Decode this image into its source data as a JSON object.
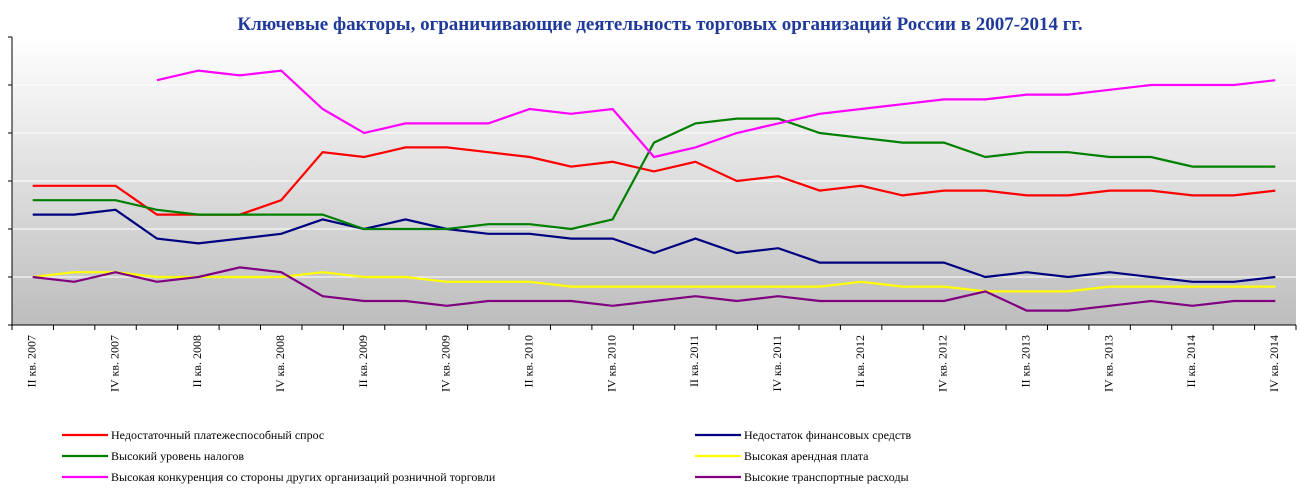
{
  "chart_data": {
    "type": "line",
    "title": "Ключевые факторы, ограничивающие  деятельность торговых организаций России в 2007-2014 гг.",
    "categories": [
      "II кв. 2007",
      null,
      "IV кв. 2007",
      null,
      "II кв. 2008",
      null,
      "IV кв. 2008",
      null,
      "II кв. 2009",
      null,
      "IV кв. 2009",
      null,
      "II кв. 2010",
      null,
      "IV кв. 2010",
      null,
      "II кв. 2011",
      null,
      "IV кв. 2011",
      null,
      "II кв. 2012",
      null,
      "IV кв. 2012",
      null,
      "II кв. 2013",
      null,
      "IV кв. 2013",
      null,
      "II кв. 2014",
      null,
      "IV кв. 2014"
    ],
    "series": [
      {
        "name": "Недостаточный платежеспособный спрос",
        "color": "#ff0000",
        "values": [
          29,
          29,
          29,
          23,
          23,
          23,
          26,
          36,
          35,
          37,
          37,
          36,
          35,
          33,
          34,
          32,
          34,
          30,
          31,
          28,
          29,
          27,
          28,
          28,
          27,
          27,
          28,
          28,
          27,
          27,
          28
        ]
      },
      {
        "name": "Недостаток финансовых средств",
        "color": "#000080",
        "values": [
          23,
          23,
          24,
          18,
          17,
          18,
          19,
          22,
          20,
          22,
          20,
          19,
          19,
          18,
          18,
          15,
          18,
          15,
          16,
          13,
          13,
          13,
          13,
          10,
          11,
          10,
          11,
          10,
          9,
          9,
          10
        ]
      },
      {
        "name": "Высокий уровень налогов",
        "color": "#008000",
        "values": [
          26,
          26,
          26,
          24,
          23,
          23,
          23,
          23,
          20,
          20,
          20,
          21,
          21,
          20,
          22,
          38,
          42,
          43,
          43,
          40,
          39,
          38,
          38,
          35,
          36,
          36,
          35,
          35,
          33,
          33,
          33
        ]
      },
      {
        "name": "Высокая арендная плата",
        "color": "#ffff00",
        "values": [
          10,
          11,
          11,
          10,
          10,
          10,
          10,
          11,
          10,
          10,
          9,
          9,
          9,
          8,
          8,
          8,
          8,
          8,
          8,
          8,
          9,
          8,
          8,
          7,
          7,
          7,
          8,
          8,
          8,
          8,
          8
        ]
      },
      {
        "name": "Высокая конкуренция со стороны других организаций розничной торговли",
        "color": "#ff00ff",
        "values": [
          null,
          null,
          null,
          51,
          53,
          52,
          53,
          45,
          40,
          42,
          42,
          42,
          45,
          44,
          45,
          35,
          37,
          40,
          42,
          44,
          45,
          46,
          47,
          47,
          48,
          48,
          49,
          50,
          50,
          50,
          51
        ]
      },
      {
        "name": "Высокие транспортные расходы",
        "color": "#800080",
        "values": [
          10,
          9,
          11,
          9,
          10,
          12,
          11,
          6,
          5,
          5,
          4,
          5,
          5,
          5,
          4,
          5,
          6,
          5,
          6,
          5,
          5,
          5,
          5,
          7,
          3,
          3,
          4,
          5,
          4,
          5,
          5
        ]
      }
    ],
    "ylim": [
      0,
      60
    ],
    "yticks": [
      0,
      10,
      20,
      30,
      40,
      50,
      60
    ],
    "grid": true
  }
}
